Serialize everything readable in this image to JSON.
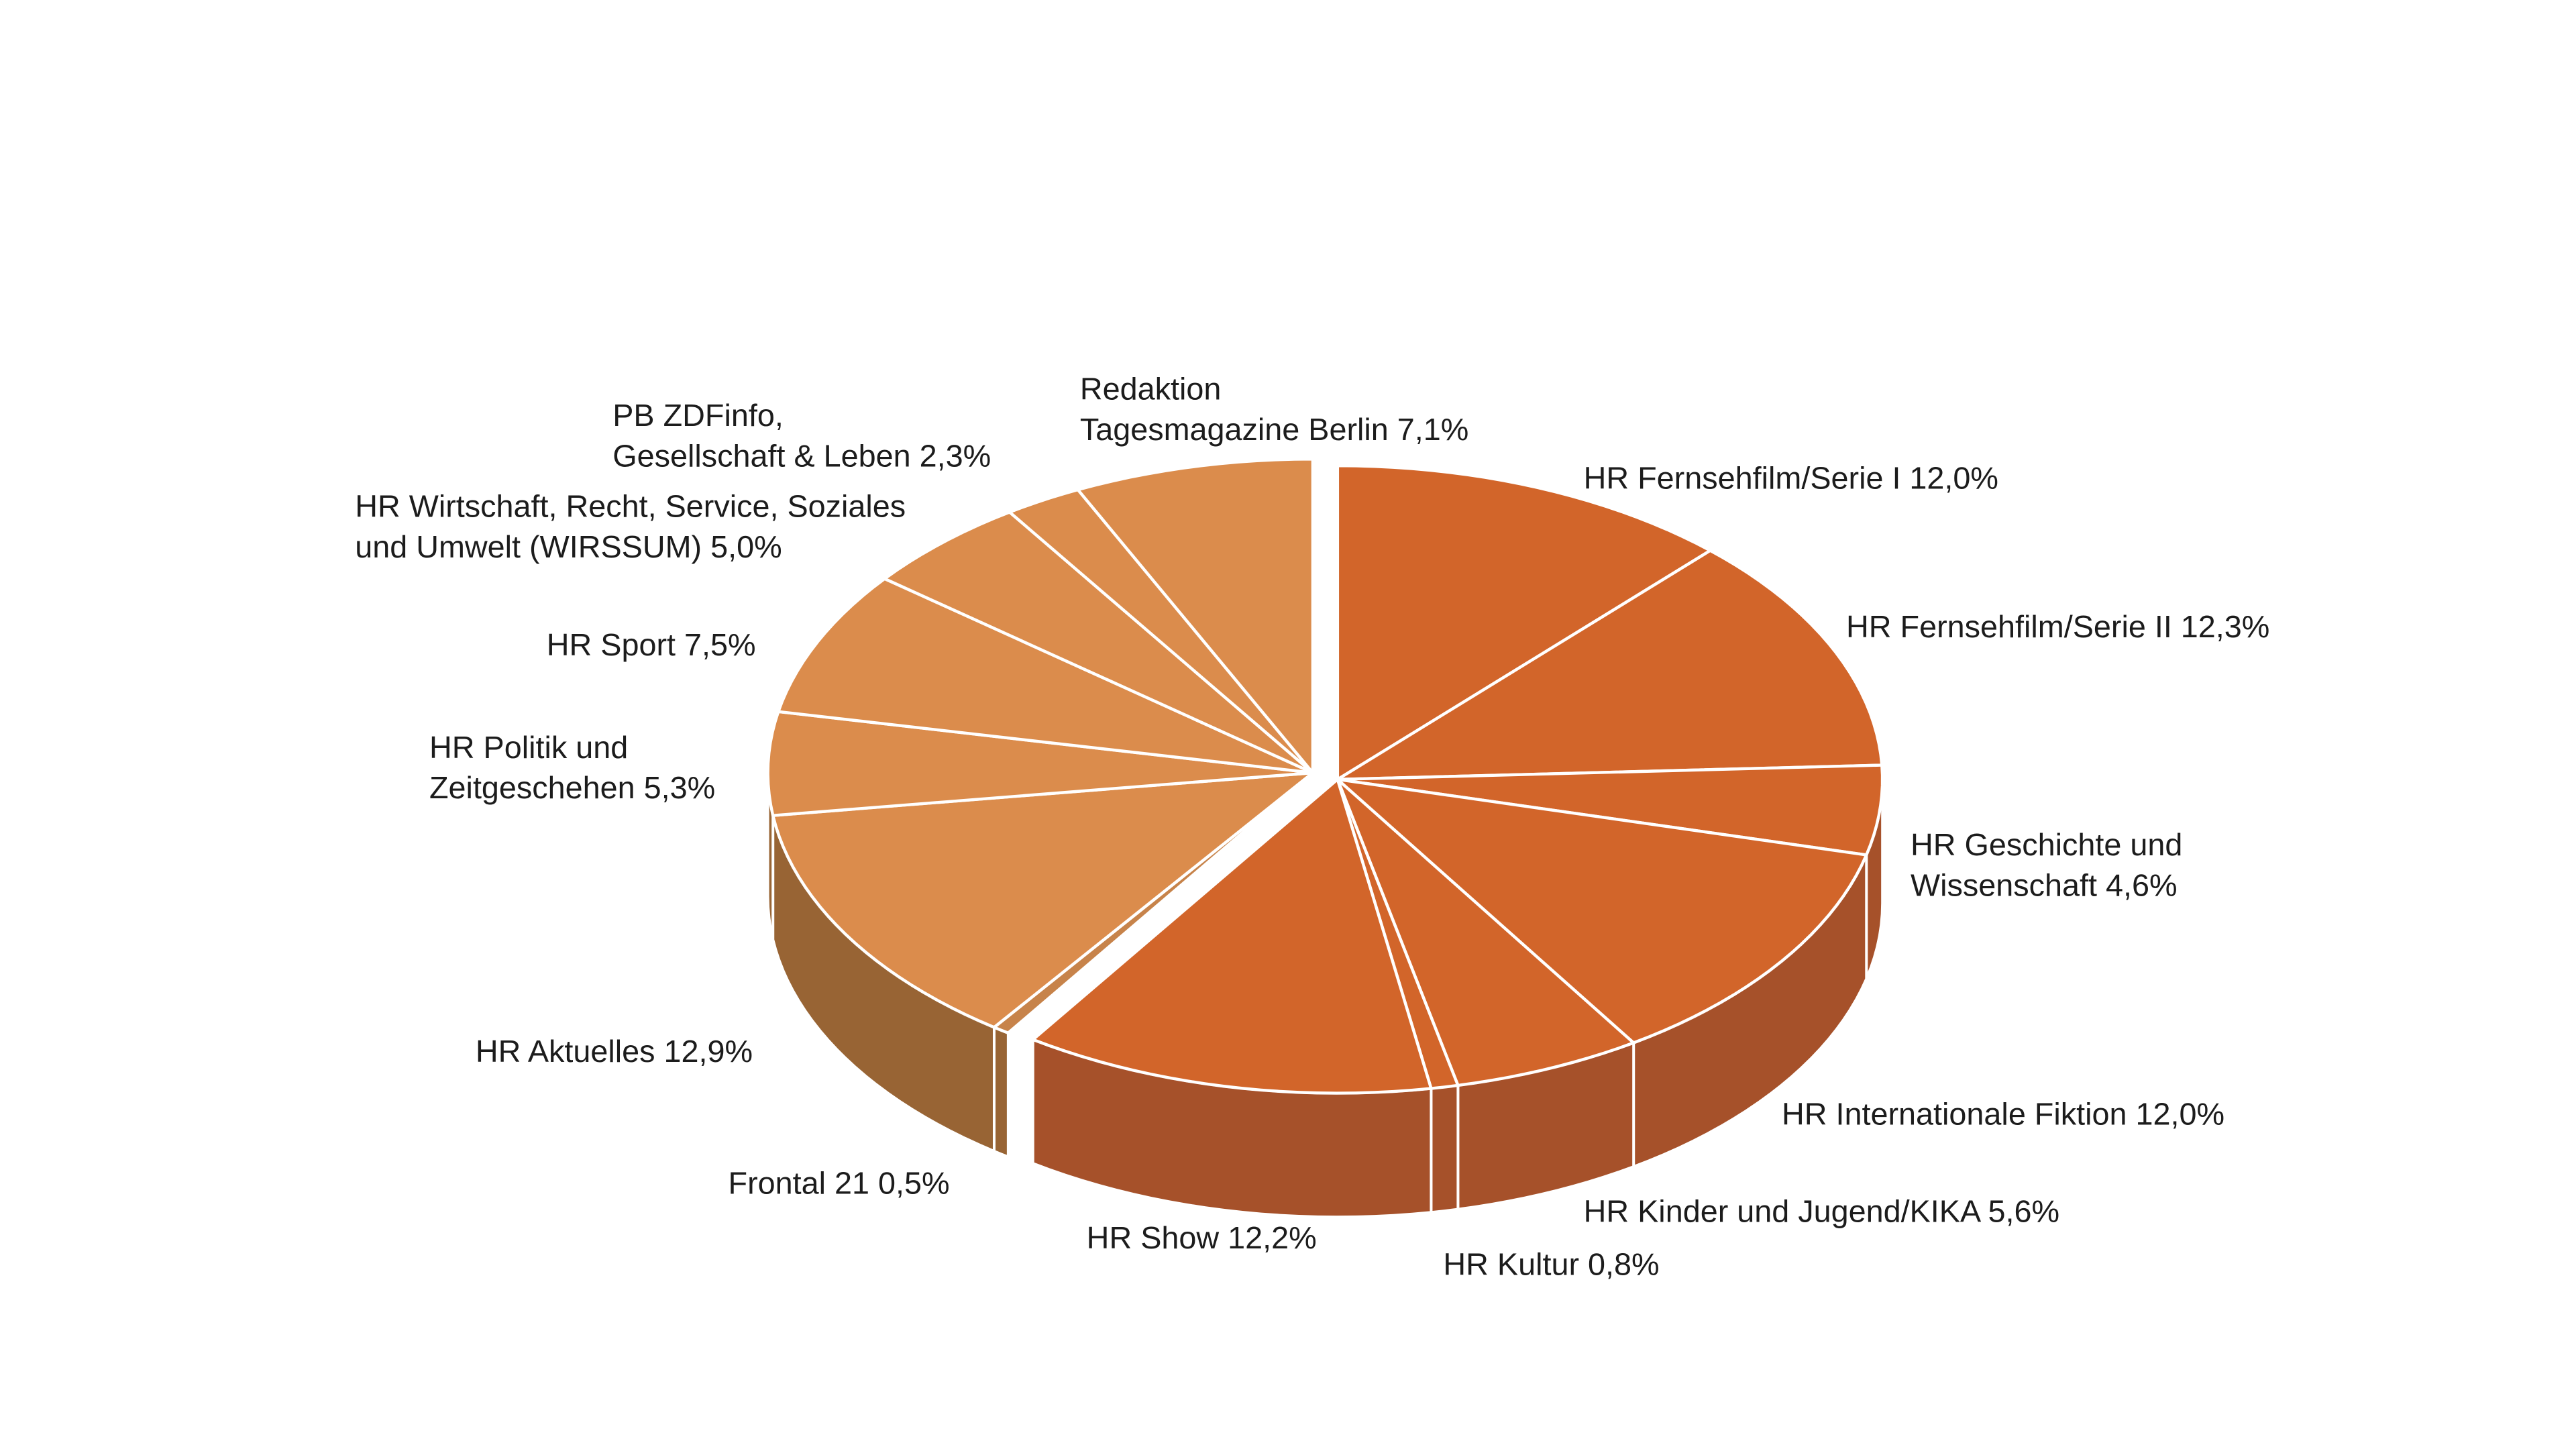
{
  "chart_data": {
    "type": "pie",
    "style": "3d-exploded",
    "legend": "none",
    "start_angle": "top, clockwise",
    "colors": {
      "group_a_top": "#D2652A",
      "group_a_side": "#A6512A",
      "group_b_top": "#DB8C4C",
      "group_b_side": "#986434",
      "frontal_top": "#C7834A",
      "separator": "#FFFFFF"
    },
    "slices": [
      {
        "lines": [
          "HR Fernsehfilm/Serie I 12,0%"
        ],
        "category": "HR Fernsehfilm/Serie I",
        "value": 12.0,
        "group": "a"
      },
      {
        "lines": [
          "HR Fernsehfilm/Serie II 12,3%"
        ],
        "category": "HR Fernsehfilm/Serie II",
        "value": 12.3,
        "group": "a"
      },
      {
        "lines": [
          "HR Geschichte und",
          "Wissenschaft 4,6%"
        ],
        "category": "HR Geschichte und Wissenschaft",
        "value": 4.6,
        "group": "a"
      },
      {
        "lines": [
          "HR Internationale Fiktion 12,0%"
        ],
        "category": "HR Internationale Fiktion",
        "value": 12.0,
        "group": "a"
      },
      {
        "lines": [
          "HR Kinder und Jugend/KIKA  5,6%"
        ],
        "category": "HR Kinder und Jugend/KIKA",
        "value": 5.6,
        "group": "a"
      },
      {
        "lines": [
          "HR Kultur  0,8%"
        ],
        "category": "HR Kultur",
        "value": 0.8,
        "group": "a"
      },
      {
        "lines": [
          "HR Show 12,2%"
        ],
        "category": "HR Show",
        "value": 12.2,
        "group": "a"
      },
      {
        "lines": [
          "Frontal 21  0,5%"
        ],
        "category": "Frontal 21",
        "value": 0.5,
        "group": "b"
      },
      {
        "lines": [
          "HR Aktuelles  12,9%"
        ],
        "category": "HR Aktuelles",
        "value": 12.9,
        "group": "b"
      },
      {
        "lines": [
          "HR Politik und",
          "Zeitgeschehen 5,3%"
        ],
        "category": "HR Politik und Zeitgeschehen",
        "value": 5.3,
        "group": "b"
      },
      {
        "lines": [
          "HR Sport  7,5%"
        ],
        "category": "HR Sport",
        "value": 7.5,
        "group": "b"
      },
      {
        "lines": [
          "HR Wirtschaft, Recht, Service, Soziales",
          "und Umwelt (WIRSSUM)  5,0%"
        ],
        "category": "HR Wirtschaft, Recht, Service, Soziales und Umwelt (WIRSSUM)",
        "value": 5.0,
        "group": "b"
      },
      {
        "lines": [
          "PB ZDFinfo,",
          "Gesellschaft & Leben 2,3%"
        ],
        "category": "PB ZDFinfo, Gesellschaft & Leben",
        "value": 2.3,
        "group": "b"
      },
      {
        "lines": [
          "Redaktion",
          "Tagesmagazine Berlin  7,1%"
        ],
        "category": "Redaktion Tagesmagazine Berlin",
        "value": 7.1,
        "group": "b"
      }
    ]
  }
}
